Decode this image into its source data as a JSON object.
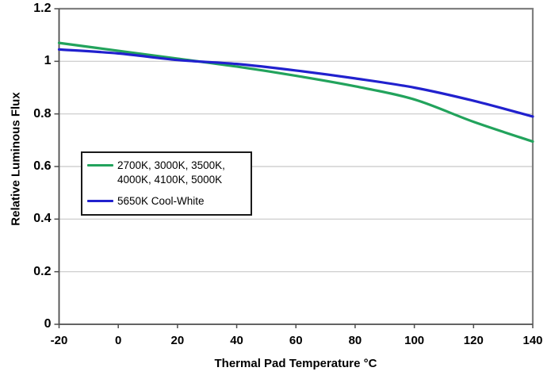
{
  "chart_data": {
    "type": "line",
    "title": "",
    "xlabel": "Thermal Pad Temperature °C",
    "ylabel": "Relative Luminous Flux",
    "x": [
      -20,
      0,
      20,
      40,
      60,
      80,
      100,
      120,
      140
    ],
    "xlim": [
      -20,
      140
    ],
    "ylim": [
      0,
      1.2
    ],
    "x_tick_labels": [
      "-20",
      "0",
      "20",
      "40",
      "60",
      "80",
      "100",
      "120",
      "140"
    ],
    "y_ticks": [
      1.2,
      1.0,
      0.8,
      0.6,
      0.4,
      0.2,
      0
    ],
    "y_tick_labels": [
      "1.2",
      "1",
      "0.8",
      "0.6",
      "0.4",
      "0.2",
      "0"
    ],
    "grid": "horizontal-only",
    "legend_position": "inside-middle-left",
    "series": [
      {
        "name": "2700K, 3000K, 3500K, 4000K, 4100K, 5000K",
        "label_lines": [
          "2700K, 3000K, 3500K,",
          "4000K, 4100K, 5000K"
        ],
        "color": "#22A35C",
        "values": [
          1.07,
          1.04,
          1.01,
          0.98,
          0.945,
          0.905,
          0.855,
          0.77,
          0.695
        ]
      },
      {
        "name": "5650K Cool-White",
        "label_lines": [
          "5650K Cool-White"
        ],
        "color": "#2121CE",
        "values": [
          1.045,
          1.03,
          1.005,
          0.99,
          0.965,
          0.935,
          0.9,
          0.85,
          0.79
        ]
      }
    ],
    "colors": {
      "gridline": "#C8C8C8",
      "border_top_right": "#808080",
      "axis_left_bottom": "#4D4D4D",
      "tick": "#4D4D4D",
      "legend_border": "#1A1A1A",
      "text": "#000000"
    }
  }
}
